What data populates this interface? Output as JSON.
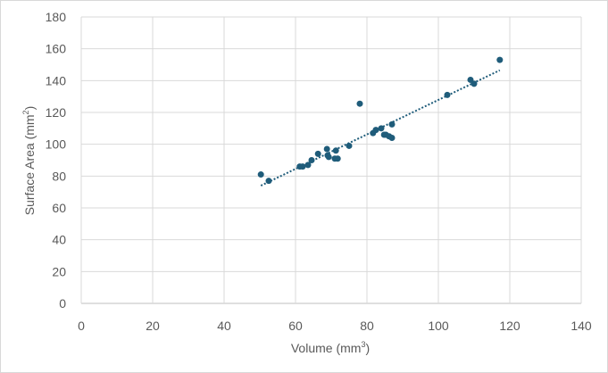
{
  "chart_data": {
    "type": "scatter",
    "title": "",
    "xlabel": "Volume (mm",
    "xlabel_sup": "3",
    "xlabel_suffix": ")",
    "ylabel": "Surface Area (mm",
    "ylabel_sup": "2",
    "ylabel_suffix": ")",
    "xlim": [
      0,
      140
    ],
    "ylim": [
      0,
      180
    ],
    "x_ticks": [
      0,
      20,
      40,
      60,
      80,
      100,
      120,
      140
    ],
    "y_ticks": [
      0,
      20,
      40,
      60,
      80,
      100,
      120,
      140,
      160,
      180
    ],
    "x_tick_labels": [
      "0",
      "20",
      "40",
      "60",
      "80",
      "100",
      "120",
      "140"
    ],
    "y_tick_labels": [
      "0",
      "20",
      "40",
      "60",
      "80",
      "100",
      "120",
      "140",
      "160",
      "180"
    ],
    "grid": true,
    "legend": "none",
    "marker_color": "#1f5c7a",
    "trendline": {
      "type": "linear",
      "style": "dotted",
      "color": "#1f5c7a",
      "x": [
        50.3,
        117.2
      ],
      "y": [
        74,
        146.5
      ]
    },
    "series": [
      {
        "x": [
          50.3,
          52.5,
          61.2,
          62.0,
          63.5,
          64.5,
          66.3,
          68.8,
          69.0,
          69.3,
          71.0,
          71.3,
          71.8,
          75.0,
          78.0,
          81.7,
          82.5,
          84.0,
          84.8,
          85.3,
          86.2,
          87.0,
          87.0,
          102.5,
          109.0,
          110.0,
          117.2
        ],
        "y": [
          81,
          77,
          86,
          86,
          87,
          90,
          94,
          97,
          93,
          92,
          91,
          96,
          91,
          99,
          125.5,
          107,
          109,
          110,
          106,
          106,
          105,
          112.5,
          104,
          131,
          140.5,
          138,
          153
        ]
      }
    ]
  }
}
